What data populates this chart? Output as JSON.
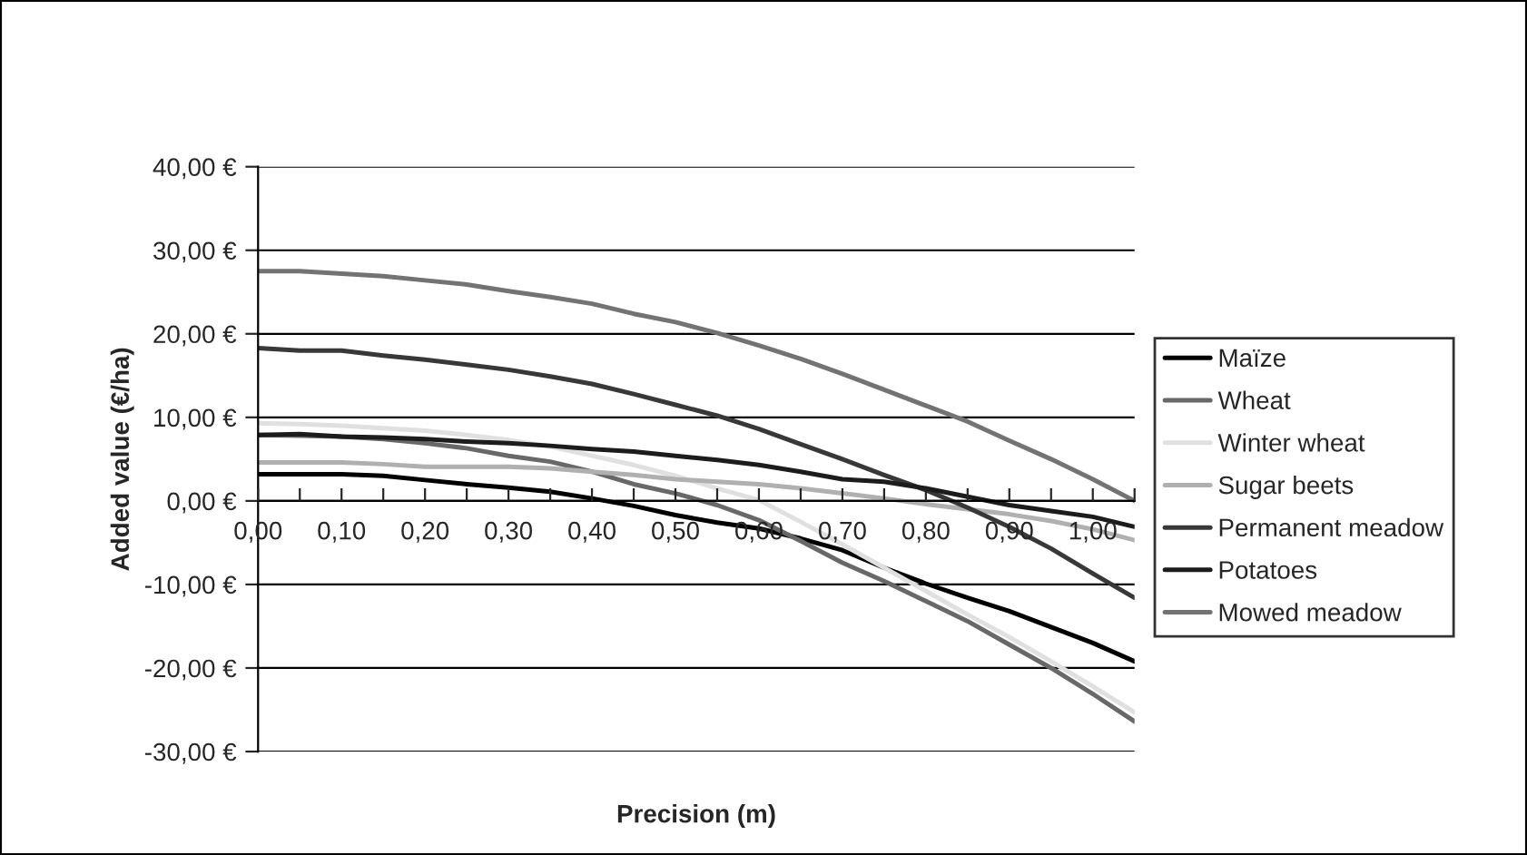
{
  "chart_data": {
    "type": "line",
    "xlabel": "Precision (m)",
    "ylabel": "Added value (€/ha)",
    "x": [
      0,
      0.05,
      0.1,
      0.15,
      0.2,
      0.25,
      0.3,
      0.35,
      0.4,
      0.45,
      0.5,
      0.55,
      0.6,
      0.65,
      0.7,
      0.75,
      0.8,
      0.85,
      0.9,
      0.95,
      1.0,
      1.05
    ],
    "series": [
      {
        "name": "Maïze",
        "color": "#000000",
        "values": [
          3.2,
          3.2,
          3.2,
          3.0,
          2.5,
          2.0,
          1.6,
          1.1,
          0.3,
          -0.6,
          -1.7,
          -2.6,
          -3.3,
          -4.5,
          -5.9,
          -8.0,
          -9.9,
          -11.6,
          -13.2,
          -15.1,
          -17.0,
          -19.2
        ]
      },
      {
        "name": "Wheat",
        "color": "#686868",
        "values": [
          7.9,
          7.8,
          7.7,
          7.4,
          6.9,
          6.3,
          5.4,
          4.7,
          3.5,
          2.0,
          0.9,
          -0.5,
          -2.3,
          -4.8,
          -7.4,
          -9.6,
          -12.0,
          -14.4,
          -17.2,
          -20.0,
          -23.1,
          -26.4
        ]
      },
      {
        "name": "Winter wheat",
        "color": "#e0e0e0",
        "values": [
          9.3,
          9.2,
          9.0,
          8.7,
          8.4,
          7.9,
          7.3,
          6.5,
          5.4,
          4.3,
          3.0,
          1.5,
          0.1,
          -2.5,
          -5.2,
          -8.0,
          -10.8,
          -13.6,
          -16.3,
          -19.2,
          -22.2,
          -25.3
        ]
      },
      {
        "name": "Sugar beets",
        "color": "#b0b0b0",
        "values": [
          4.6,
          4.6,
          4.6,
          4.4,
          4.1,
          4.1,
          4.1,
          3.9,
          3.5,
          3.1,
          2.6,
          2.3,
          2.0,
          1.5,
          0.9,
          0.3,
          -0.4,
          -1.0,
          -1.6,
          -2.4,
          -3.4,
          -4.7
        ]
      },
      {
        "name": "Permanent meadow",
        "color": "#383838",
        "values": [
          18.3,
          18.0,
          18.0,
          17.4,
          16.9,
          16.3,
          15.7,
          14.9,
          14.0,
          12.8,
          11.5,
          10.2,
          8.6,
          6.8,
          5.0,
          3.1,
          1.3,
          -0.8,
          -3.1,
          -5.7,
          -8.7,
          -11.6
        ]
      },
      {
        "name": "Potatoes",
        "color": "#1c1c1c",
        "values": [
          7.9,
          8.0,
          7.7,
          7.6,
          7.4,
          7.1,
          6.9,
          6.6,
          6.2,
          5.9,
          5.4,
          4.9,
          4.3,
          3.5,
          2.6,
          2.3,
          1.5,
          0.5,
          -0.5,
          -1.2,
          -1.9,
          -3.1
        ]
      },
      {
        "name": "Mowed meadow",
        "color": "#737373",
        "values": [
          27.5,
          27.5,
          27.2,
          26.9,
          26.4,
          25.9,
          25.1,
          24.4,
          23.6,
          22.4,
          21.4,
          20.1,
          18.6,
          17.0,
          15.2,
          13.3,
          11.4,
          9.5,
          7.2,
          5.0,
          2.6,
          0.0
        ]
      }
    ],
    "xlim": [
      0,
      1.05
    ],
    "xticks": [
      {
        "value": 0,
        "label": "0,00"
      },
      {
        "value": 0.05,
        "label": null
      },
      {
        "value": 0.1,
        "label": "0,10"
      },
      {
        "value": 0.15,
        "label": null
      },
      {
        "value": 0.2,
        "label": "0,20"
      },
      {
        "value": 0.25,
        "label": null
      },
      {
        "value": 0.3,
        "label": "0,30"
      },
      {
        "value": 0.35,
        "label": null
      },
      {
        "value": 0.4,
        "label": "0,40"
      },
      {
        "value": 0.45,
        "label": null
      },
      {
        "value": 0.5,
        "label": "0,50"
      },
      {
        "value": 0.55,
        "label": null
      },
      {
        "value": 0.6,
        "label": "0,60"
      },
      {
        "value": 0.65,
        "label": null
      },
      {
        "value": 0.7,
        "label": "0,70"
      },
      {
        "value": 0.75,
        "label": null
      },
      {
        "value": 0.8,
        "label": "0,80"
      },
      {
        "value": 0.85,
        "label": null
      },
      {
        "value": 0.9,
        "label": "0,90"
      },
      {
        "value": 0.95,
        "label": null
      },
      {
        "value": 1.0,
        "label": "1,00"
      },
      {
        "value": 1.05,
        "label": null
      }
    ],
    "ylim": [
      -30,
      40
    ],
    "yticks": [
      {
        "value": -30,
        "label": "-30,00 €"
      },
      {
        "value": -20,
        "label": "-20,00 €"
      },
      {
        "value": -10,
        "label": "-10,00 €"
      },
      {
        "value": 0,
        "label": "0,00 €"
      },
      {
        "value": 10,
        "label": "10,00 €"
      },
      {
        "value": 20,
        "label": "20,00 €"
      },
      {
        "value": 30,
        "label": "30,00 €"
      },
      {
        "value": 40,
        "label": "40,00 €"
      }
    ],
    "grid": "y",
    "legend": "right",
    "marker": "none",
    "line_style": "solid"
  }
}
